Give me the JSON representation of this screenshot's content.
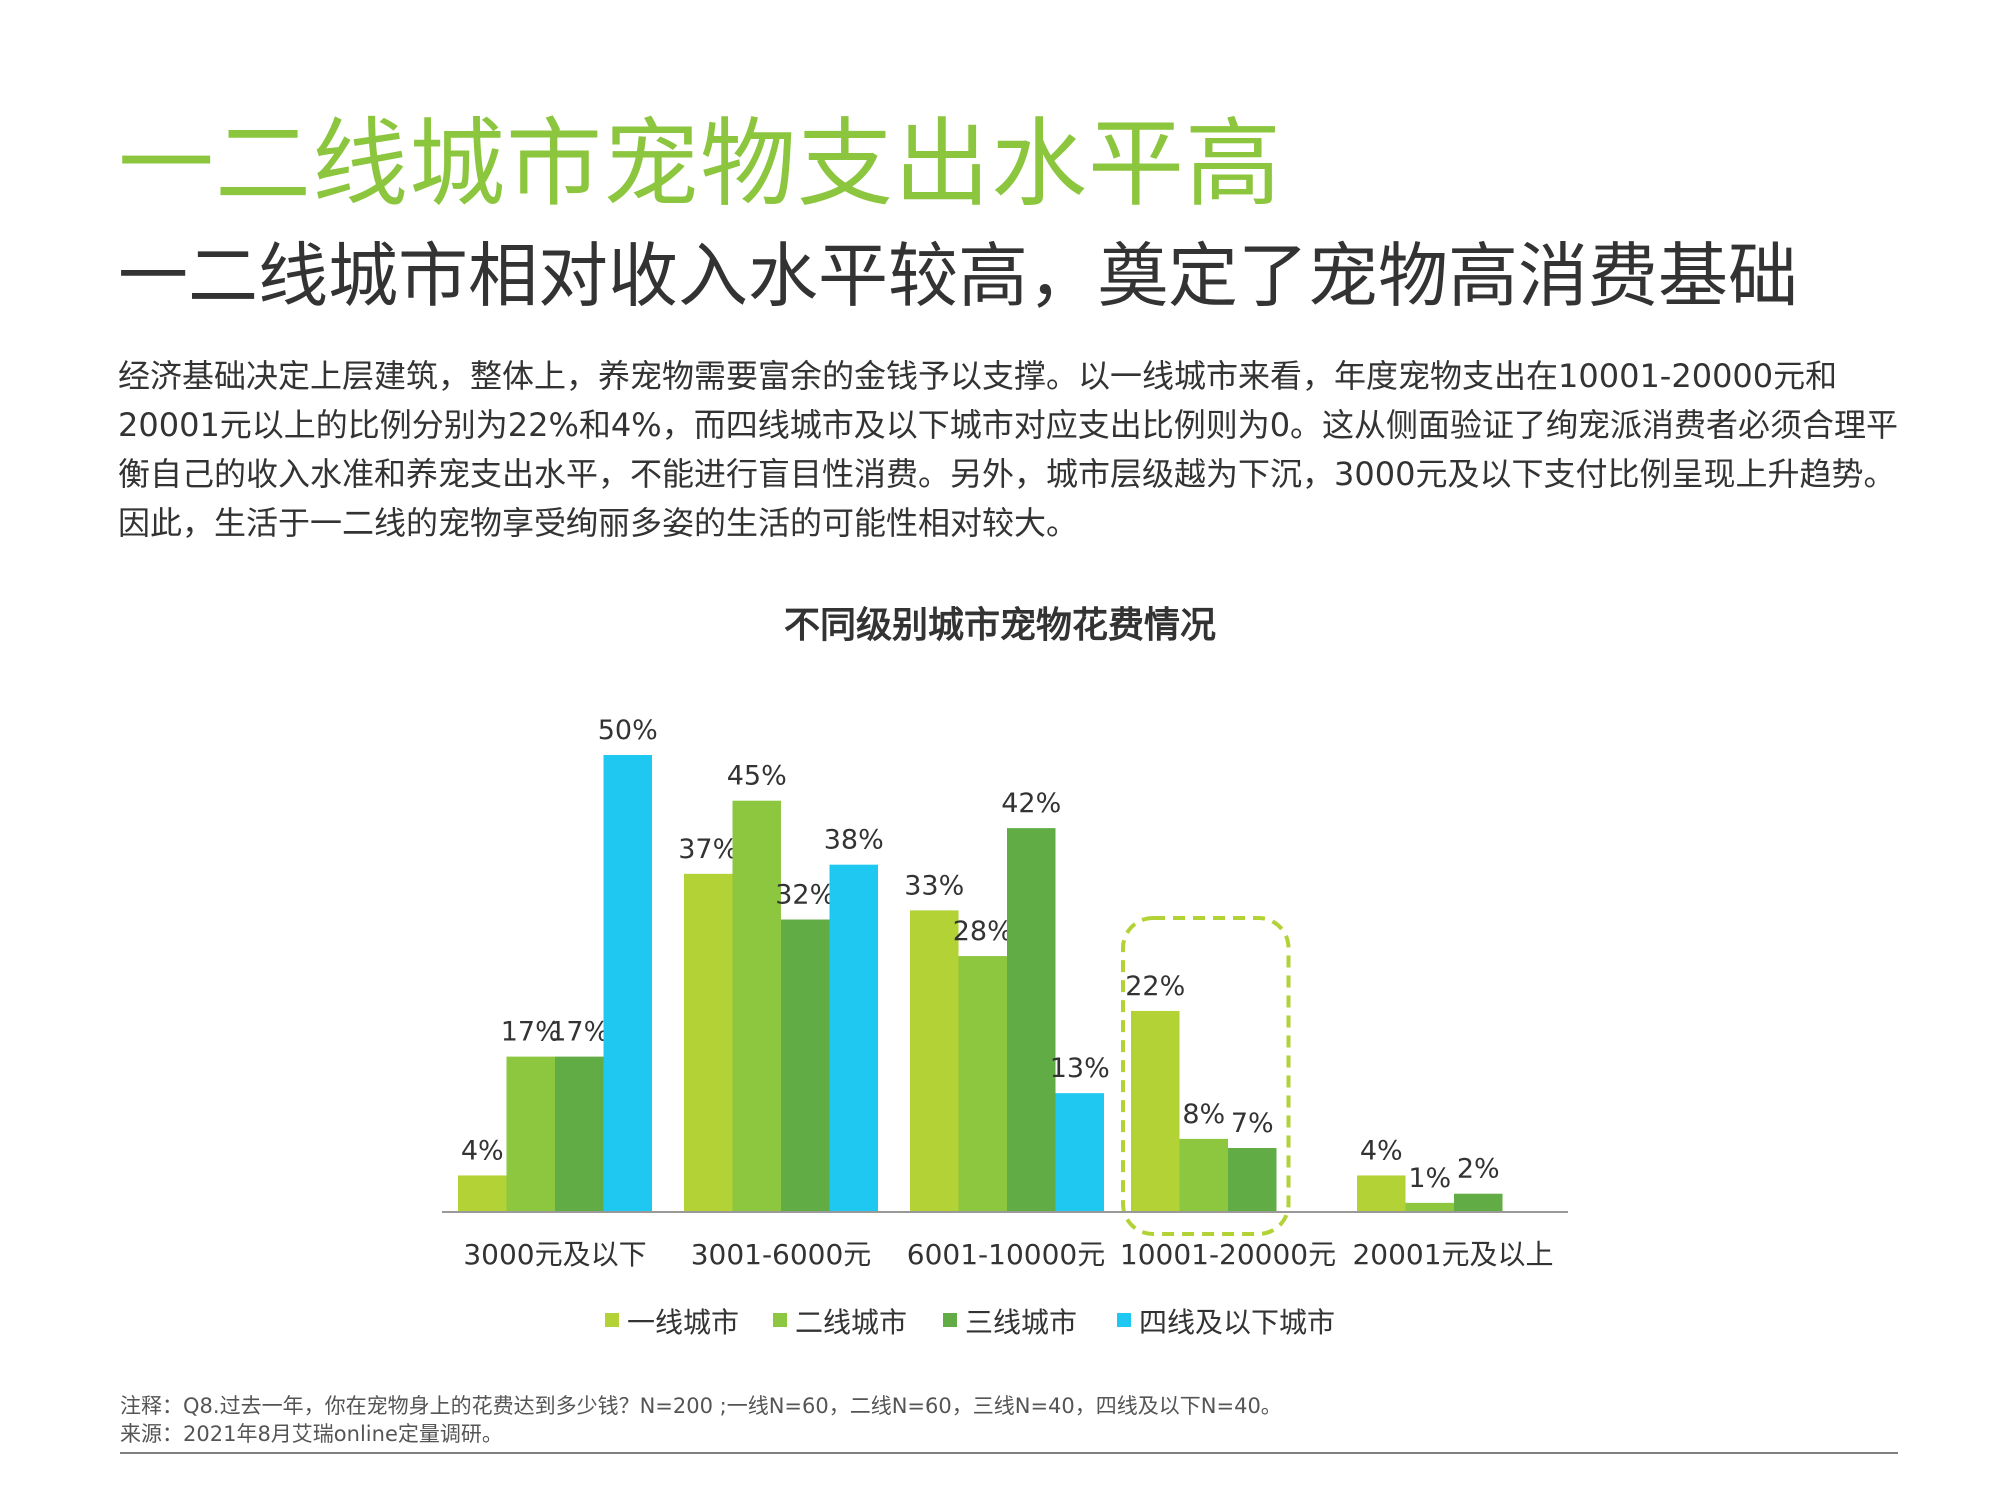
{
  "header": {
    "title": "一二线城市宠物支出水平高",
    "subtitle": "一二线城市相对收入水平较高，奠定了宠物高消费基础"
  },
  "body_text": "经济基础决定上层建筑，整体上，养宠物需要富余的金钱予以支撑。以一线城市来看，年度宠物支出在10001-20000元和20001元以上的比例分别为22%和4%，而四线城市及以下城市对应支出比例则为0。这从侧面验证了绚宠派消费者必须合理平衡自己的收入水准和养宠支出水平，不能进行盲目性消费。另外，城市层级越为下沉，3000元及以下支付比例呈现上升趋势。因此，生活于一二线的宠物享受绚丽多姿的生活的可能性相对较大。",
  "chart_data": {
    "type": "bar",
    "title": "不同级别城市宠物花费情况",
    "categories": [
      "3000元及以下",
      "3001-6000元",
      "6001-10000元",
      "10001-20000元",
      "20001元及以上"
    ],
    "series": [
      {
        "name": "一线城市",
        "color": "#b2d235",
        "values": [
          4,
          37,
          33,
          22,
          4
        ],
        "labels": [
          "4%",
          "37%",
          "33%",
          "22%",
          "4%"
        ]
      },
      {
        "name": "二线城市",
        "color": "#8dc63f",
        "values": [
          17,
          45,
          28,
          8,
          1
        ],
        "labels": [
          "17%",
          "45%",
          "28%",
          "8%",
          "1%"
        ]
      },
      {
        "name": "三线城市",
        "color": "#62ac45",
        "values": [
          17,
          32,
          42,
          7,
          2
        ],
        "labels": [
          "17%",
          "32%",
          "42%",
          "7%",
          "2%"
        ]
      },
      {
        "name": "四线及以下城市",
        "color": "#1ec8f0",
        "values": [
          50,
          38,
          13,
          null,
          null
        ],
        "labels": [
          "50%",
          "38%",
          "13%",
          null,
          null
        ]
      }
    ],
    "ylim": [
      0,
      50
    ],
    "grid": false,
    "legend": "bottom",
    "highlight": {
      "category": "10001-20000元",
      "style": "dashed",
      "color": "#b2d235"
    }
  },
  "footer": {
    "note": "注释：Q8.过去一年，你在宠物身上的花费达到多少钱？N=200 ;一线N=60，二线N=60，三线N=40，四线及以下N=40。",
    "source": "来源：2021年8月艾瑞online定量调研。"
  }
}
